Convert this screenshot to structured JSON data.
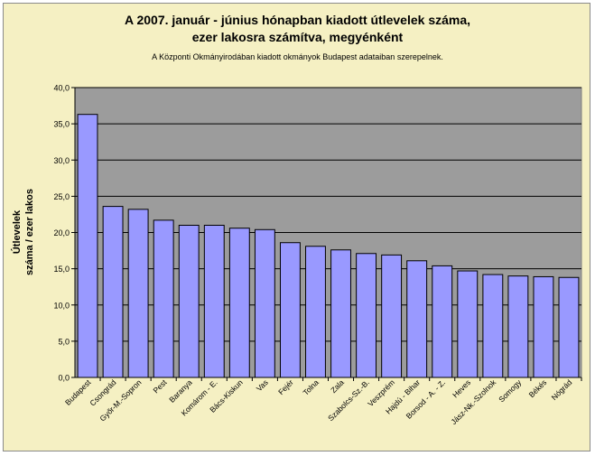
{
  "chart_data": {
    "type": "bar",
    "title": "A 2007. január - június hónapban kiadott útlevelek száma,",
    "title_line2": "ezer lakosra számítva, megyénként",
    "subtitle": "A Központi Okmányirodában kiadott okmányok Budapest adataiban szerepelnek.",
    "xlabel": "",
    "ylabel_line1": "Útlevelek",
    "ylabel_line2": "száma / ezer lakos",
    "ylim": [
      0,
      40
    ],
    "ytick_step": 5,
    "ytick_labels": [
      "0,0",
      "5,0",
      "10,0",
      "15,0",
      "20,0",
      "25,0",
      "30,0",
      "35,0",
      "40,0"
    ],
    "grid": true,
    "categories": [
      "Budapest",
      "Csongrád",
      "Győr-M.-Sopron",
      "Pest",
      "Baranya",
      "Komárom - E.",
      "Bács-Kiskun",
      "Vas",
      "Fejér",
      "Tolna",
      "Zala",
      "Szabolcs-Sz.-B.",
      "Veszprém",
      "Hajdú - Bihar",
      "Borsod - A. - Z.",
      "Heves",
      "Jász-Nk.-Szolnok",
      "Somogy",
      "Békés",
      "Nógrád"
    ],
    "values": [
      36.3,
      23.6,
      23.2,
      21.7,
      21.0,
      21.0,
      20.6,
      20.4,
      18.6,
      18.1,
      17.6,
      17.1,
      16.9,
      16.1,
      15.4,
      14.7,
      14.2,
      14.0,
      13.9,
      13.8
    ],
    "colors": {
      "bar_fill": "#9999ff",
      "bar_stroke": "#000000",
      "plot_bg": "#9c9c9c",
      "gridline": "#000000",
      "chart_bg": "#f5f0c3"
    }
  }
}
